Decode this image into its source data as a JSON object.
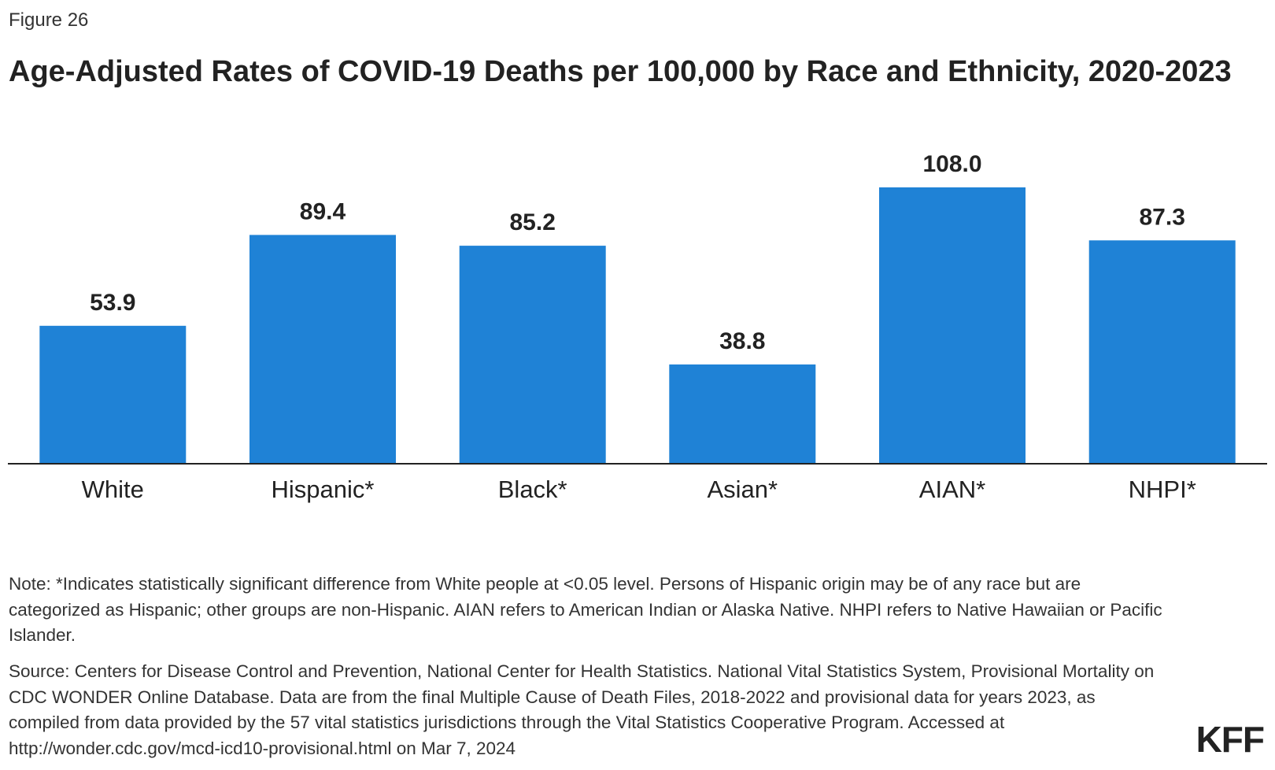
{
  "figure_label": "Figure 26",
  "title": "Age-Adjusted Rates of COVID-19 Deaths per 100,000 by Race and Ethnicity, 2020-2023",
  "note": "Note: *Indicates statistically significant difference from White people at <0.05 level. Persons of Hispanic origin may be of any race but are categorized as Hispanic; other groups are non-Hispanic. AIAN refers to American Indian or Alaska Native. NHPI refers to Native Hawaiian or Pacific Islander.",
  "source": "Source: Centers for Disease Control and Prevention, National Center for Health Statistics. National Vital Statistics System, Provisional Mortality on CDC WONDER Online Database. Data are from the final Multiple Cause of Death Files, 2018-2022 and provisional data for years 2023, as compiled from data provided by the 57 vital statistics jurisdictions through the Vital Statistics Cooperative Program. Accessed at http://wonder.cdc.gov/mcd-icd10-provisional.html on Mar 7, 2024",
  "logo_text": "KFF",
  "colors": {
    "bar": "#1f82d6",
    "axis": "#222222",
    "text": "#222222"
  },
  "chart_data": {
    "type": "bar",
    "categories": [
      "White",
      "Hispanic*",
      "Black*",
      "Asian*",
      "AIAN*",
      "NHPI*"
    ],
    "values": [
      53.9,
      89.4,
      85.2,
      38.8,
      108.0,
      87.3
    ],
    "value_labels": [
      "53.9",
      "89.4",
      "85.2",
      "38.8",
      "108.0",
      "87.3"
    ],
    "title": "Age-Adjusted Rates of COVID-19 Deaths per 100,000 by Race and Ethnicity, 2020-2023",
    "xlabel": "",
    "ylabel": "",
    "ylim": [
      0,
      108
    ],
    "grid": false,
    "legend": "none"
  }
}
